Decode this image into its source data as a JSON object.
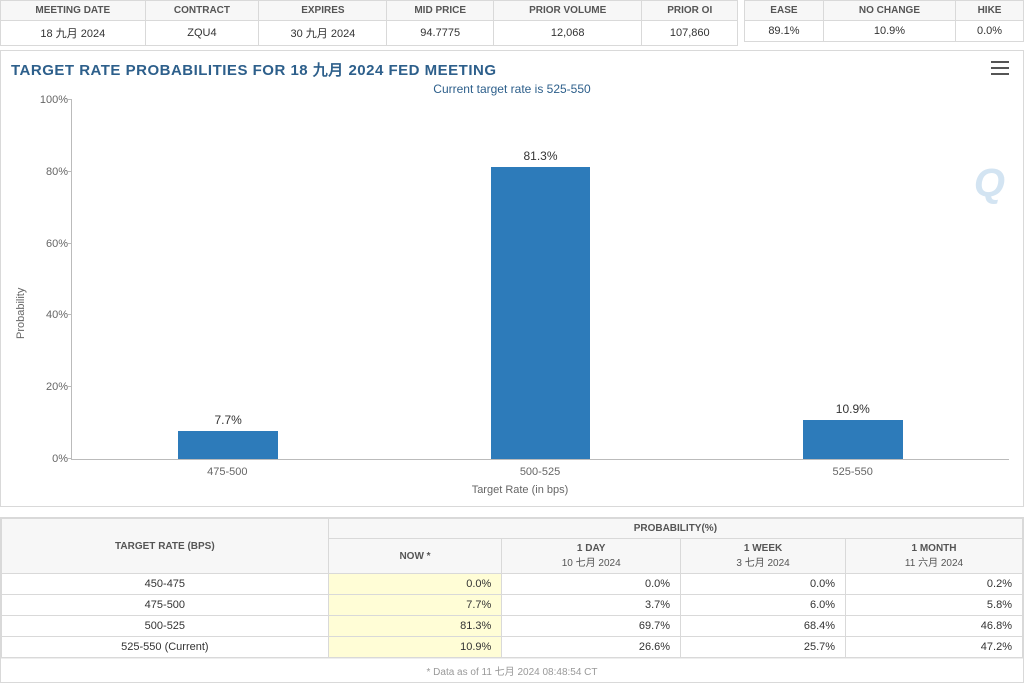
{
  "top_table": {
    "headers": [
      "MEETING DATE",
      "CONTRACT",
      "EXPIRES",
      "MID PRICE",
      "PRIOR VOLUME",
      "PRIOR OI"
    ],
    "row": {
      "meeting_date": "18 九月 2024",
      "contract": "ZQU4",
      "expires": "30 九月 2024",
      "mid_price": "94.7775",
      "prior_volume": "12,068",
      "prior_oi": "107,860"
    }
  },
  "summary_table": {
    "headers": [
      "EASE",
      "NO CHANGE",
      "HIKE"
    ],
    "row": {
      "ease": "89.1%",
      "no_change": "10.9%",
      "hike": "0.0%"
    }
  },
  "chart": {
    "type": "bar",
    "title": "TARGET RATE PROBABILITIES FOR 18 九月 2024 FED MEETING",
    "subtitle": "Current target rate is 525-550",
    "y_label": "Probability",
    "x_label": "Target Rate (in bps)",
    "categories": [
      "475-500",
      "500-525",
      "525-550"
    ],
    "values": [
      7.7,
      81.3,
      10.9
    ],
    "value_labels": [
      "7.7%",
      "81.3%",
      "10.9%"
    ],
    "bar_color": "#2d7bba",
    "y_ticks": [
      0,
      20,
      40,
      60,
      80,
      100
    ],
    "y_tick_labels": [
      "0%",
      "20%",
      "40%",
      "60%",
      "80%",
      "100%"
    ],
    "ylim": [
      0,
      100
    ],
    "bar_width_pct": 32,
    "background_color": "#ffffff",
    "axis_color": "#bbbbbb",
    "text_color": "#666666",
    "title_color": "#2d5f8b",
    "watermark": "Q"
  },
  "prob_table": {
    "header_main_left": "TARGET RATE (BPS)",
    "header_main_right": "PROBABILITY(%)",
    "sub_headers": [
      {
        "top": "NOW",
        "bottom": "*"
      },
      {
        "top": "1 DAY",
        "bottom": "10 七月 2024"
      },
      {
        "top": "1 WEEK",
        "bottom": "3 七月 2024"
      },
      {
        "top": "1 MONTH",
        "bottom": "11 六月 2024"
      }
    ],
    "rows": [
      {
        "rate": "450-475",
        "now": "0.0%",
        "d1": "0.0%",
        "w1": "0.0%",
        "m1": "0.2%"
      },
      {
        "rate": "475-500",
        "now": "7.7%",
        "d1": "3.7%",
        "w1": "6.0%",
        "m1": "5.8%"
      },
      {
        "rate": "500-525",
        "now": "81.3%",
        "d1": "69.7%",
        "w1": "68.4%",
        "m1": "46.8%"
      },
      {
        "rate": "525-550 (Current)",
        "now": "10.9%",
        "d1": "26.6%",
        "w1": "25.7%",
        "m1": "47.2%"
      }
    ],
    "highlight_column": "now",
    "highlight_color": "#fffdd6"
  },
  "footnote": "* Data as of 11 七月 2024 08:48:54 CT"
}
